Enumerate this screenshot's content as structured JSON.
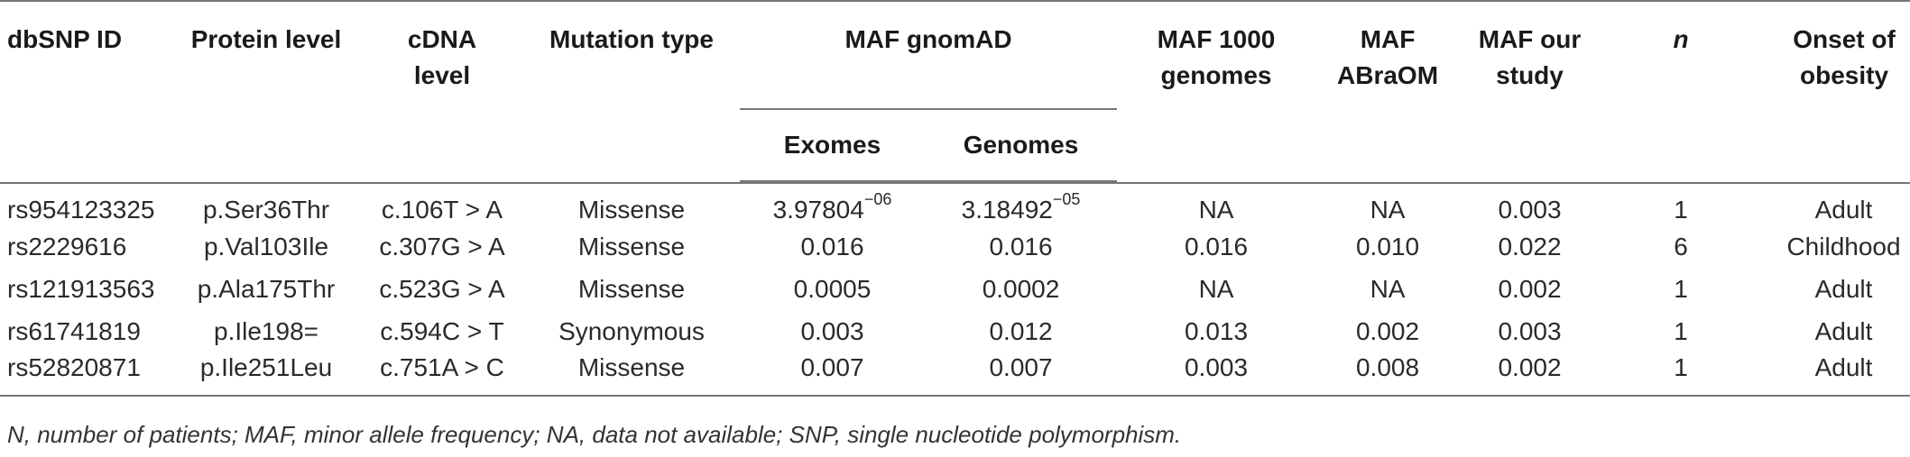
{
  "headers": {
    "dbsnp": "dbSNP ID",
    "protein": "Protein level",
    "cdna": "cDNA level",
    "mutation": "Mutation type",
    "maf_gnomad": "MAF gnomAD",
    "exomes": "Exomes",
    "genomes": "Genomes",
    "maf_1000": "MAF 1000 genomes",
    "maf_abraom": "MAF ABraOM",
    "maf_study": "MAF our study",
    "n": "n",
    "onset": "Onset of obesity"
  },
  "rows": [
    {
      "dbsnp": "rs954123325",
      "protein": "p.Ser36Thr",
      "cdna": "c.106T > A",
      "mutation": "Missense",
      "exomes": "3.97804",
      "exomes_exp": "−06",
      "genomes": "3.18492",
      "genomes_exp": "−05",
      "maf_1000": "NA",
      "maf_abraom": "NA",
      "maf_study": "0.003",
      "n": "1",
      "onset": "Adult"
    },
    {
      "dbsnp": "rs2229616",
      "protein": "p.Val103Ile",
      "cdna": "c.307G > A",
      "mutation": "Missense",
      "exomes": "0.016",
      "exomes_exp": "",
      "genomes": "0.016",
      "genomes_exp": "",
      "maf_1000": "0.016",
      "maf_abraom": "0.010",
      "maf_study": "0.022",
      "n": "6",
      "onset": "Childhood"
    },
    {
      "dbsnp": "rs121913563",
      "protein": "p.Ala175Thr",
      "cdna": "c.523G > A",
      "mutation": "Missense",
      "exomes": "0.0005",
      "exomes_exp": "",
      "genomes": "0.0002",
      "genomes_exp": "",
      "maf_1000": "NA",
      "maf_abraom": "NA",
      "maf_study": "0.002",
      "n": "1",
      "onset": "Adult"
    },
    {
      "dbsnp": "rs61741819",
      "protein": "p.Ile198=",
      "cdna": "c.594C > T",
      "mutation": "Synonymous",
      "exomes": "0.003",
      "exomes_exp": "",
      "genomes": "0.012",
      "genomes_exp": "",
      "maf_1000": "0.013",
      "maf_abraom": "0.002",
      "maf_study": "0.003",
      "n": "1",
      "onset": "Adult"
    },
    {
      "dbsnp": "rs52820871",
      "protein": "p.Ile251Leu",
      "cdna": "c.751A > C",
      "mutation": "Missense",
      "exomes": "0.007",
      "exomes_exp": "",
      "genomes": "0.007",
      "genomes_exp": "",
      "maf_1000": "0.003",
      "maf_abraom": "0.008",
      "maf_study": "0.002",
      "n": "1",
      "onset": "Adult"
    }
  ],
  "footnote": "N, number of patients; MAF, minor allele frequency; NA, data not available; SNP, single nucleotide polymorphism."
}
